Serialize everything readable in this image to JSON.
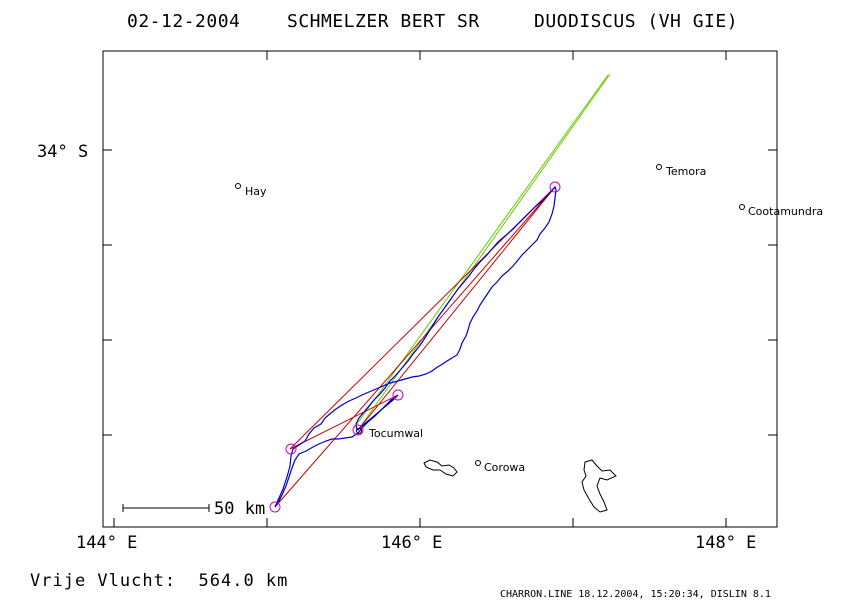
{
  "header": {
    "date": "02-12-2004",
    "pilot": "SCHMELZER BERT SR",
    "glider": "DUODISCUS (VH GIE)"
  },
  "axes": {
    "y_label": "34° S",
    "x_labels": [
      "144° E",
      "146° E",
      "148° E"
    ]
  },
  "towns": [
    {
      "name": "Hay"
    },
    {
      "name": "Temora"
    },
    {
      "name": "Cootamundra"
    },
    {
      "name": "Tocumwal"
    },
    {
      "name": "Corowa"
    }
  ],
  "scale_bar": {
    "label": "50 km"
  },
  "footer": {
    "distance": "Vrije Vlucht:  564.0 km",
    "credit": "CHARRON.LINE 18.12.2004, 15:20:34, DISLIN 8.1"
  },
  "colors": {
    "track": "#0000cc",
    "task_line": "#cc0000",
    "wind_line": "#66cc00",
    "turnpoint": "#cc00cc",
    "frame": "#000000"
  }
}
